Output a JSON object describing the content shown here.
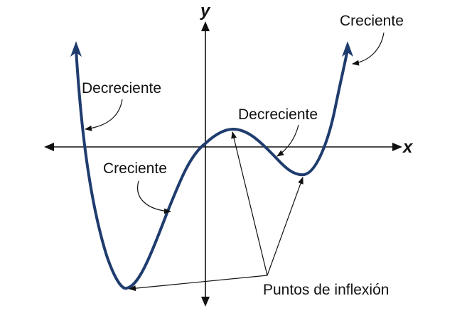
{
  "axes": {
    "x_label": "x",
    "y_label": "y"
  },
  "labels": {
    "creciente_top_right": "Creciente",
    "decreciente_left": "Decreciente",
    "decreciente_middle": "Decreciente",
    "creciente_left": "Creciente",
    "puntos_inflexion": "Puntos de inflexión"
  },
  "colors": {
    "curve": "#1f3c6e",
    "axis": "#111111",
    "text": "#111111"
  }
}
